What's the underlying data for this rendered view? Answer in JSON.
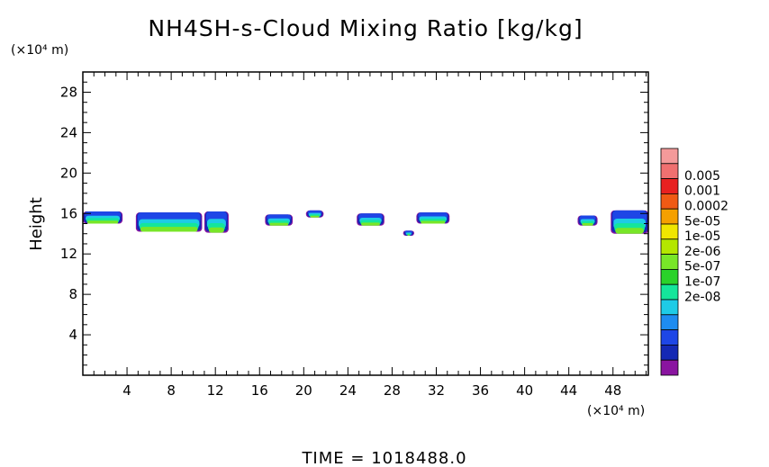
{
  "chart_data": {
    "type": "heatmap",
    "title": "NH4SH-s-Cloud Mixing Ratio [kg/kg]",
    "ylabel": "Height",
    "x_unit": "(×10⁴ m)",
    "y_unit": "(×10⁴ m)",
    "x_ticks": [
      "4",
      "8",
      "12",
      "16",
      "20",
      "24",
      "28",
      "32",
      "36",
      "40",
      "44",
      "48"
    ],
    "y_ticks": [
      "4",
      "8",
      "12",
      "16",
      "20",
      "24",
      "28"
    ],
    "xlim": [
      0,
      51.2
    ],
    "ylim": [
      0,
      30
    ],
    "time_label": "TIME",
    "time_value": "1018488.0",
    "colorbar": {
      "labels": [
        "0.005",
        "0.001",
        "0.0002",
        "5e-05",
        "1e-05",
        "2e-06",
        "5e-07",
        "1e-07",
        "2e-08"
      ],
      "colors": [
        "#f49a9a",
        "#f07070",
        "#e82020",
        "#f05a14",
        "#f5a000",
        "#f0e600",
        "#b4e600",
        "#78e628",
        "#2ad22a",
        "#14e69b",
        "#1ecbe6",
        "#1e8cf0",
        "#1e46e6",
        "#1428b4",
        "#8a14a0"
      ]
    },
    "cloud_patches": [
      {
        "x0": 0.0,
        "x1": 3.6,
        "y0": 15.0,
        "y1": 16.2
      },
      {
        "x0": 4.8,
        "x1": 10.8,
        "y0": 14.2,
        "y1": 16.1
      },
      {
        "x0": 11.0,
        "x1": 13.2,
        "y0": 14.1,
        "y1": 16.2
      },
      {
        "x0": 16.5,
        "x1": 19.0,
        "y0": 14.8,
        "y1": 15.9
      },
      {
        "x0": 20.2,
        "x1": 21.8,
        "y0": 15.6,
        "y1": 16.3
      },
      {
        "x0": 24.8,
        "x1": 27.3,
        "y0": 14.8,
        "y1": 16.0
      },
      {
        "x0": 29.0,
        "x1": 30.0,
        "y0": 13.8,
        "y1": 14.3
      },
      {
        "x0": 30.2,
        "x1": 33.2,
        "y0": 15.0,
        "y1": 16.1
      },
      {
        "x0": 44.8,
        "x1": 46.6,
        "y0": 14.8,
        "y1": 15.8
      },
      {
        "x0": 47.8,
        "x1": 51.2,
        "y0": 14.0,
        "y1": 16.3
      }
    ]
  }
}
